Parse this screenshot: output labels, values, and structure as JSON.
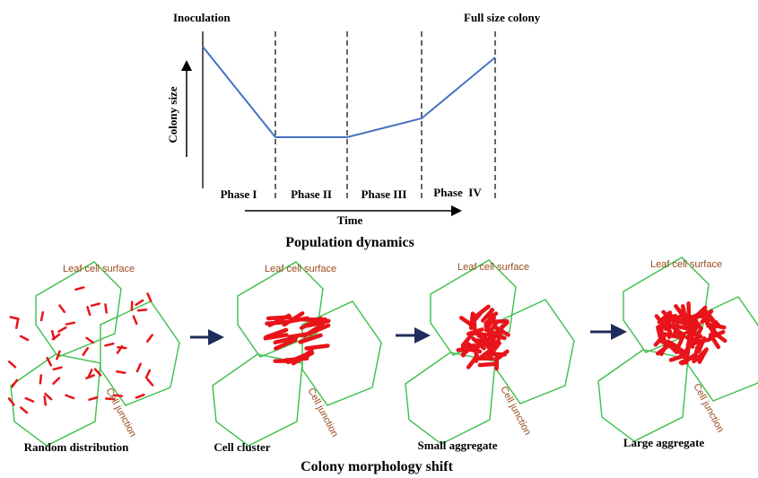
{
  "population_dynamics": {
    "start_label": "Inoculation",
    "end_label": "Full size colony",
    "y_axis": "Colony size",
    "x_axis": "Time",
    "phases": [
      "Phase I",
      "Phase II",
      "Phase III",
      "Phase  IV"
    ],
    "title": "Population dynamics"
  },
  "morphology": {
    "panels": [
      {
        "surface_label": "Leaf cell surface",
        "junction_label": "Cell junction",
        "caption": "Random distribution"
      },
      {
        "surface_label": "Leaf cell surface",
        "junction_label": "Cell junction",
        "caption": "Cell cluster"
      },
      {
        "surface_label": "Leaf cell surface",
        "junction_label": "Cell junction",
        "caption": "Small aggregate"
      },
      {
        "surface_label": "Leaf cell surface",
        "junction_label": "Cell junction",
        "caption": "Large aggregate"
      }
    ],
    "title": "Colony morphology shift"
  }
}
